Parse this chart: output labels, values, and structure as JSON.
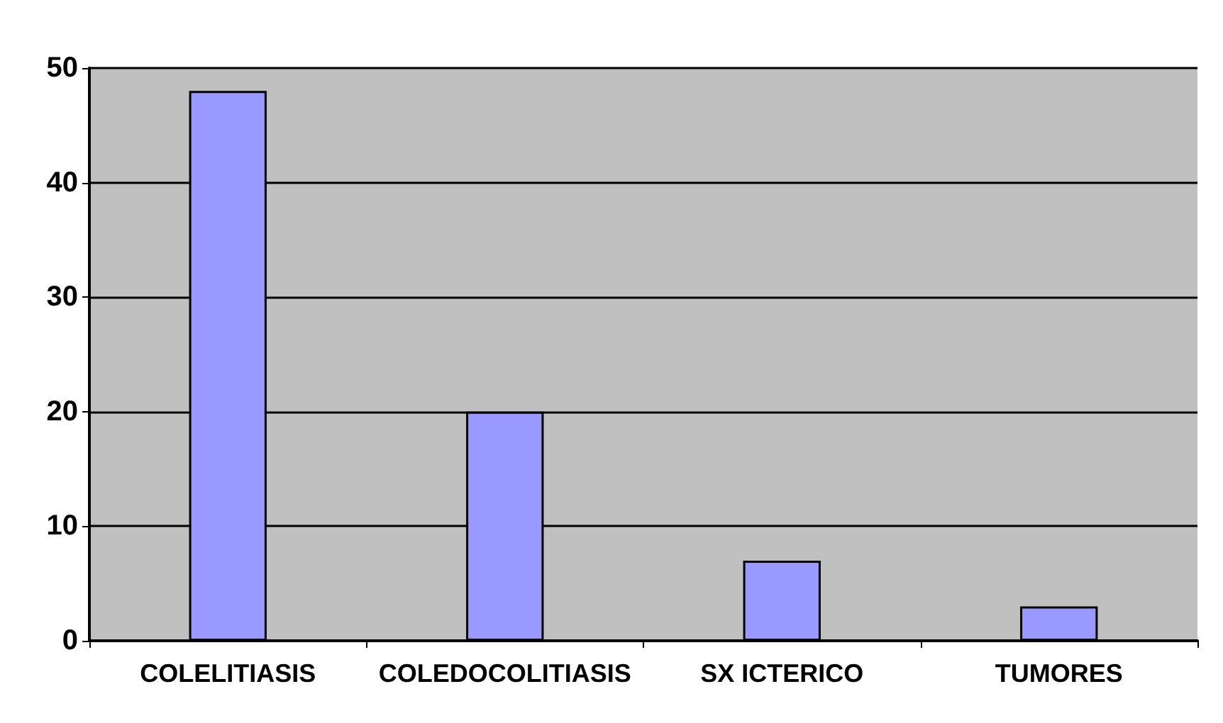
{
  "chart_data": {
    "type": "bar",
    "categories": [
      "COLELITIASIS",
      "COLEDOCOLITIASIS",
      "SX ICTERICO",
      "TUMORES"
    ],
    "values": [
      48,
      20,
      7,
      3
    ],
    "color": "#9999ff",
    "ylim": [
      0,
      50
    ],
    "yticks": [
      0,
      10,
      20,
      30,
      40,
      50
    ],
    "grid": "y"
  }
}
